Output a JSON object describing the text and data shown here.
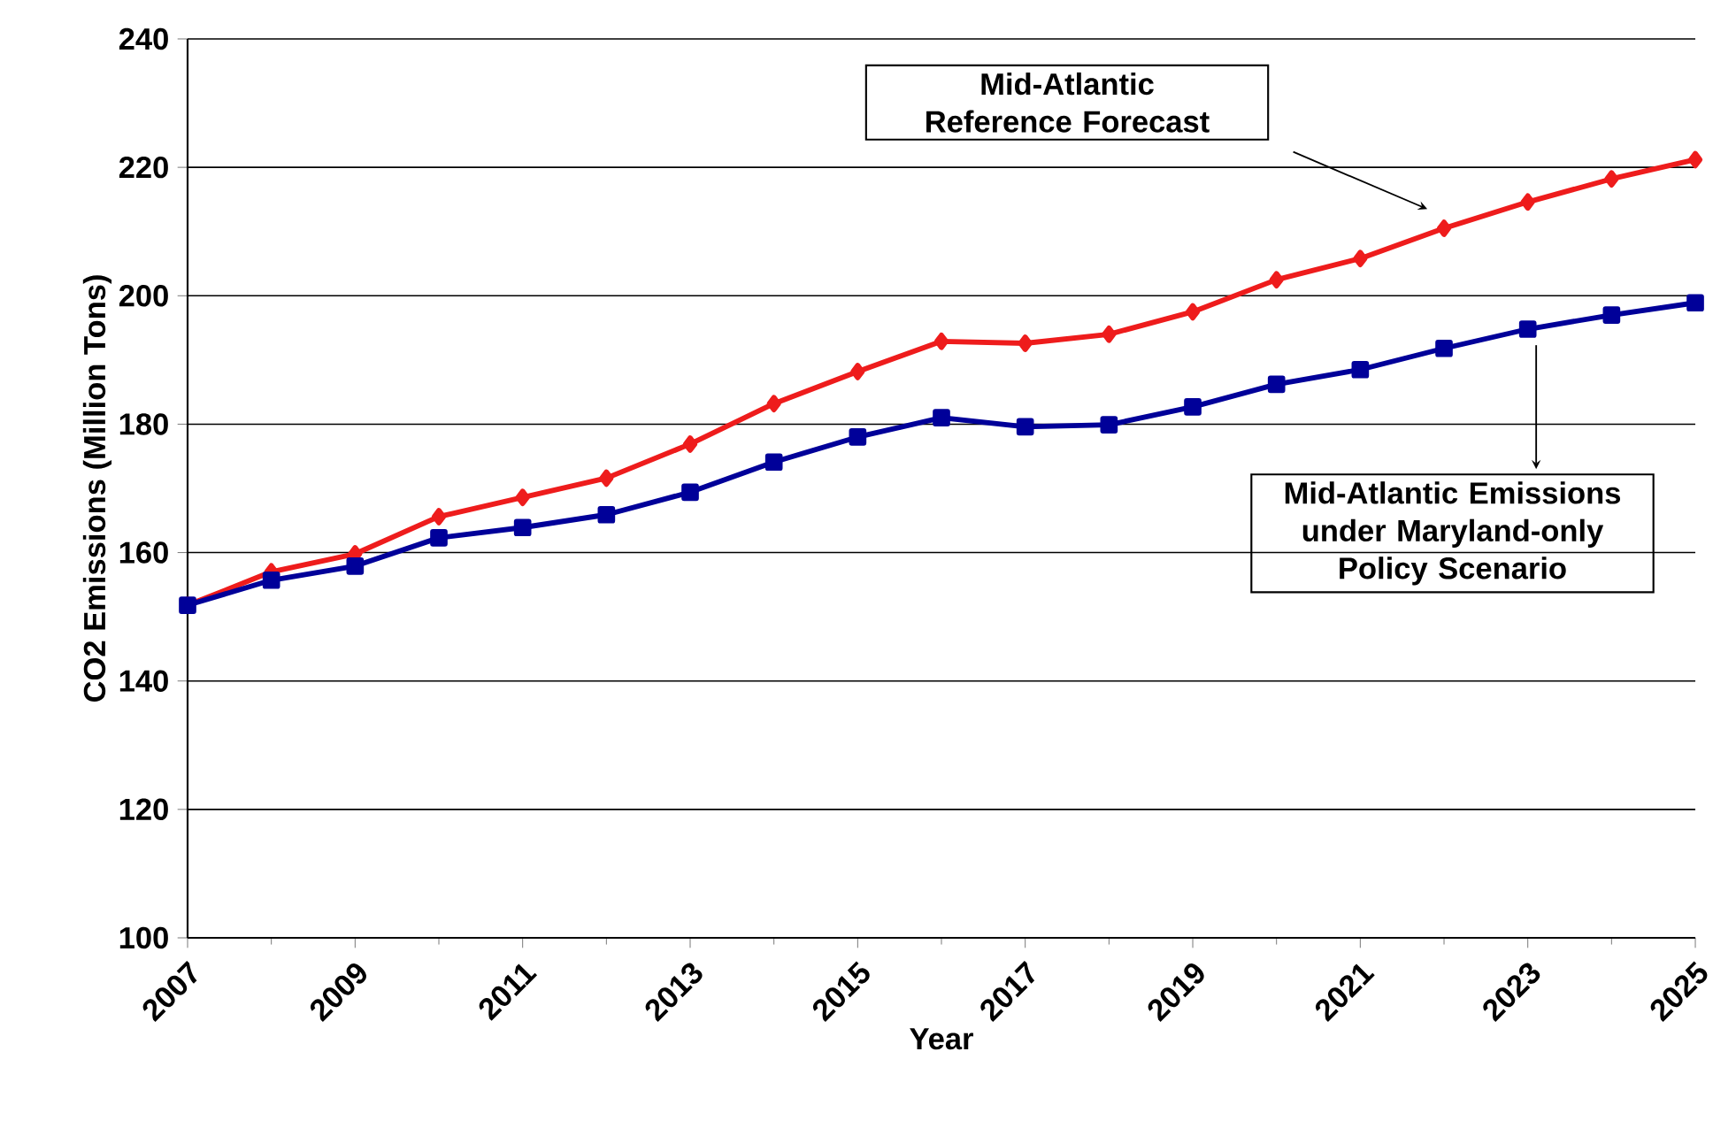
{
  "chart_data": {
    "type": "line",
    "xlabel": "Year",
    "ylabel": "CO2 Emissions (Million Tons)",
    "x": [
      2007,
      2008,
      2009,
      2010,
      2011,
      2012,
      2013,
      2014,
      2015,
      2016,
      2017,
      2018,
      2019,
      2020,
      2021,
      2022,
      2023,
      2024,
      2025
    ],
    "series": [
      {
        "color": "#ee1c1c",
        "marker": "diamond",
        "values": [
          151.8,
          157.0,
          159.8,
          165.6,
          168.6,
          171.6,
          176.9,
          183.2,
          188.2,
          192.9,
          192.6,
          194.0,
          197.5,
          202.5,
          205.8,
          210.5,
          214.6,
          218.2,
          221.2
        ]
      },
      {
        "color": "#000099",
        "marker": "square",
        "values": [
          151.8,
          155.7,
          157.9,
          162.3,
          163.9,
          165.9,
          169.4,
          174.1,
          178.0,
          181.0,
          179.6,
          179.9,
          182.7,
          186.2,
          188.5,
          191.8,
          194.8,
          197.0,
          198.9
        ]
      }
    ],
    "xlim": [
      2007,
      2025
    ],
    "xticks": [
      2007,
      2009,
      2011,
      2013,
      2015,
      2017,
      2019,
      2021,
      2023,
      2025
    ],
    "ylim": [
      100,
      240
    ],
    "yticks": [
      100,
      120,
      140,
      160,
      180,
      200,
      220,
      240
    ],
    "grid": "y",
    "line_style": "solid",
    "annotations": [
      "Mid-Atlantic Reference Forecast",
      "Mid-Atlantic Emissions under Maryland-only Policy Scenario"
    ]
  }
}
